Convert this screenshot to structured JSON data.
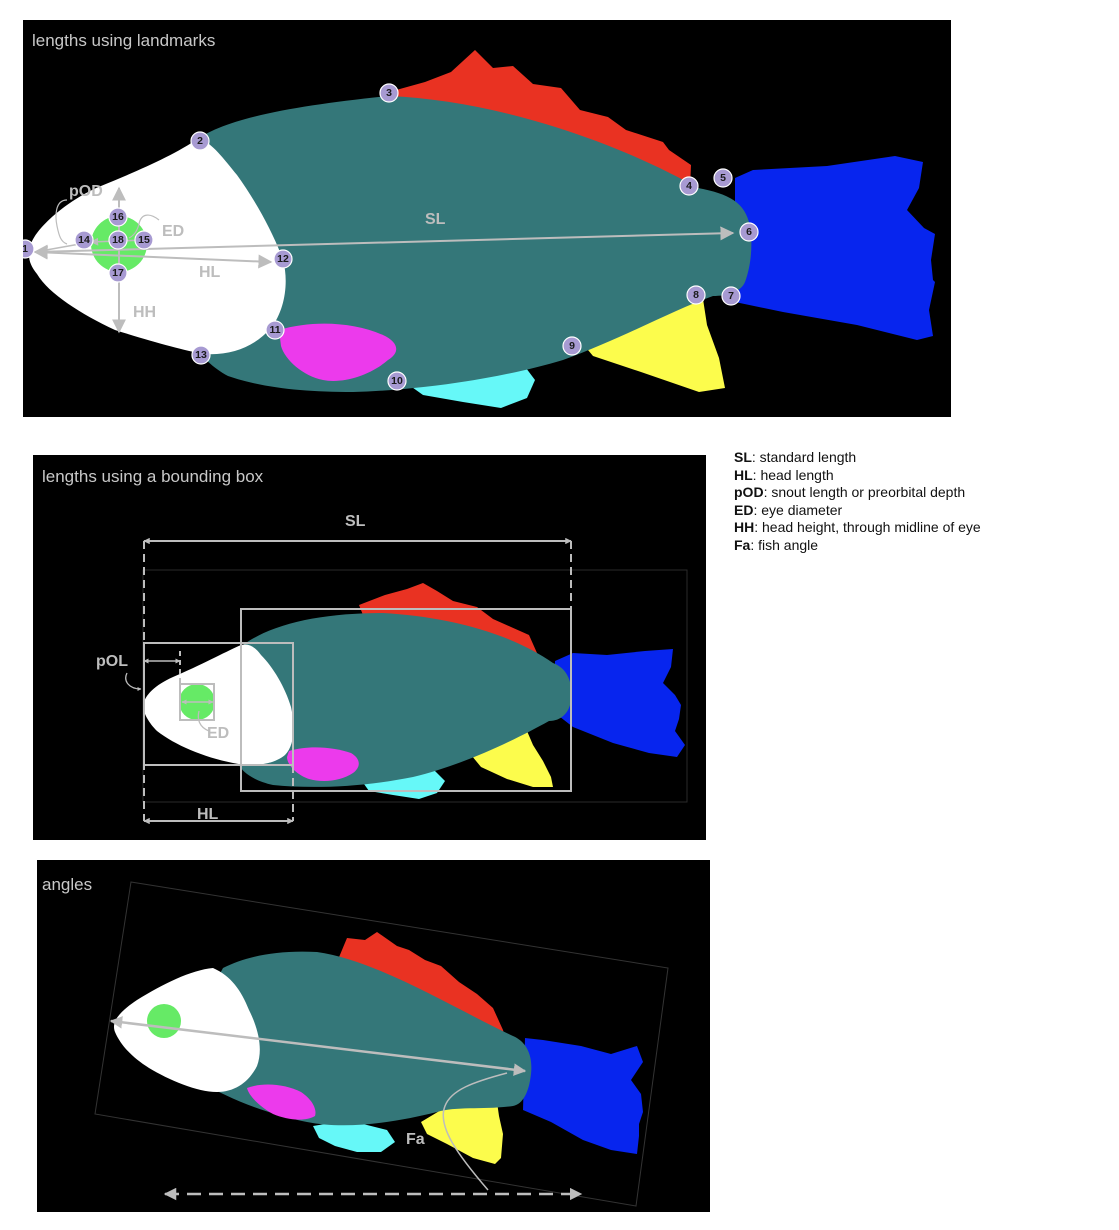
{
  "panels": {
    "landmarks": {
      "title": "lengths using landmarks"
    },
    "bbox": {
      "title": "lengths using a bounding box"
    },
    "angles": {
      "title": "angles"
    }
  },
  "labels": {
    "sl": "SL",
    "hl": "HL",
    "hh": "HH",
    "pod": "pOD",
    "ed": "ED",
    "pol": "pOL",
    "fa": "Fa"
  },
  "landmarks": [
    "1",
    "2",
    "3",
    "4",
    "5",
    "6",
    "7",
    "8",
    "9",
    "10",
    "11",
    "12",
    "13",
    "14",
    "15",
    "16",
    "17",
    "18"
  ],
  "legend": [
    {
      "abbr": "SL",
      "desc": ": standard length"
    },
    {
      "abbr": "HL",
      "desc": ": head length"
    },
    {
      "abbr": "pOD",
      "desc": ": snout length or preorbital depth"
    },
    {
      "abbr": "ED",
      "desc": ": eye diameter"
    },
    {
      "abbr": "HH",
      "desc": ": head height, through midline of eye"
    },
    {
      "abbr": "Fa",
      "desc": ": fish angle"
    }
  ],
  "colors": {
    "body": "#347779",
    "head": "#ffffff",
    "eye": "#66ea66",
    "dorsal_fin": "#e93222",
    "caudal_fin": "#0725ee",
    "pectoral_fin": "#ec3aec",
    "pelvic_fin": "#66f8f8",
    "anal_fin": "#fcfc4c",
    "measure": "#bdbdbd",
    "landmark": "#a79ad2"
  }
}
